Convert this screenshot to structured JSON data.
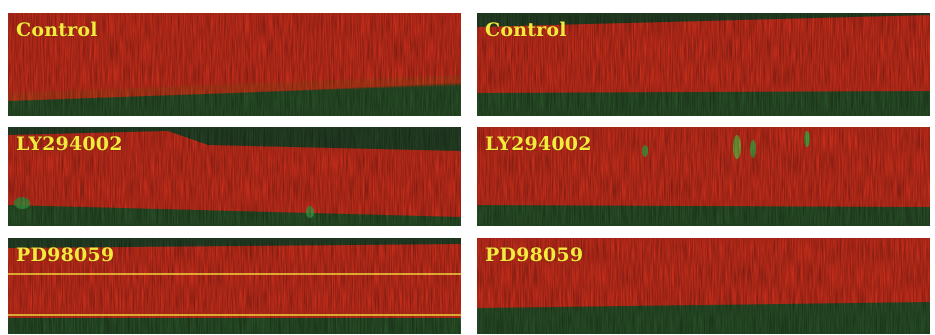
{
  "figure": {
    "panels": [
      {
        "label": "Control"
      },
      {
        "label": "Control"
      },
      {
        "label": "LY294002"
      },
      {
        "label": "LY294002"
      },
      {
        "label": "PD98059"
      },
      {
        "label": "PD98059"
      }
    ]
  },
  "colors": {
    "label": "#f2ea3c",
    "red_stain": "#e8321e",
    "green_stain": "#2f7a3a",
    "background_dark": "#1f3a1f",
    "guide_line": "#f0d23a"
  }
}
